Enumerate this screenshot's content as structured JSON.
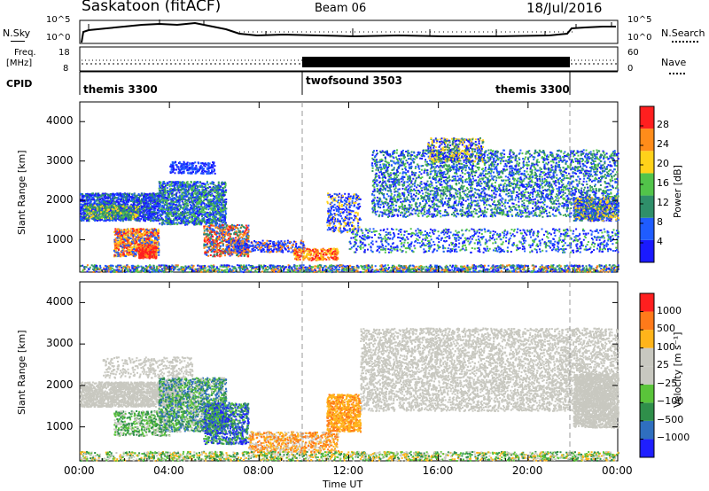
{
  "header": {
    "station": "Saskatoon (fitACF)",
    "beam": "Beam 06",
    "date": "18/Jul/2016"
  },
  "nsky_panel": {
    "left_label": "N.Sky",
    "right_label": "N.Search",
    "left_ticks": [
      "10^5",
      "10^0"
    ],
    "right_ticks": [
      "10^5",
      "10^0"
    ]
  },
  "freq_panel": {
    "left_label_1": "Freq.",
    "left_label_2": "[MHz]",
    "left_ticks": [
      "18",
      "8"
    ],
    "right_label": "Nave",
    "right_ticks": [
      "60",
      "0"
    ]
  },
  "cpid_panel": {
    "label": "CPID",
    "modes": [
      {
        "name": "themis 3300"
      },
      {
        "name": "twofsound 3503"
      },
      {
        "name": "themis 3300"
      }
    ]
  },
  "chart_data": [
    {
      "type": "heatmap",
      "name": "power",
      "ylabel": "Slant Range [km]",
      "yticks": [
        "4000",
        "3000",
        "2000",
        "1000"
      ],
      "colorbar": {
        "label": "Power [dB]",
        "ticks": [
          "28",
          "24",
          "20",
          "16",
          "12",
          "8",
          "4"
        ],
        "colors": [
          "#1a1aff",
          "#1f5cff",
          "#2f8f6a",
          "#52c44a",
          "#ffd21a",
          "#ff8c1a",
          "#ff1f1f"
        ]
      },
      "ylim": [
        180,
        4500
      ]
    },
    {
      "type": "heatmap",
      "name": "velocity",
      "ylabel": "Slant Range [km]",
      "yticks": [
        "4000",
        "3000",
        "2000",
        "1000"
      ],
      "xlabel": "Time UT",
      "xticks": [
        "00:00",
        "04:00",
        "08:00",
        "12:00",
        "16:00",
        "20:00",
        "00:00"
      ],
      "colorbar": {
        "label": "Velocity [m s⁻¹]",
        "ticks": [
          "1000",
          "500",
          "100",
          "25",
          "−25",
          "−100",
          "−500",
          "−1000"
        ],
        "colors": [
          "#1f1fff",
          "#2f6fbf",
          "#2f8f4a",
          "#5ac43a",
          "#c8c8c0",
          "#c8c8c0",
          "#ffb41a",
          "#ff7a1a",
          "#ff1f1f"
        ]
      },
      "ylim": [
        180,
        4500
      ]
    }
  ]
}
